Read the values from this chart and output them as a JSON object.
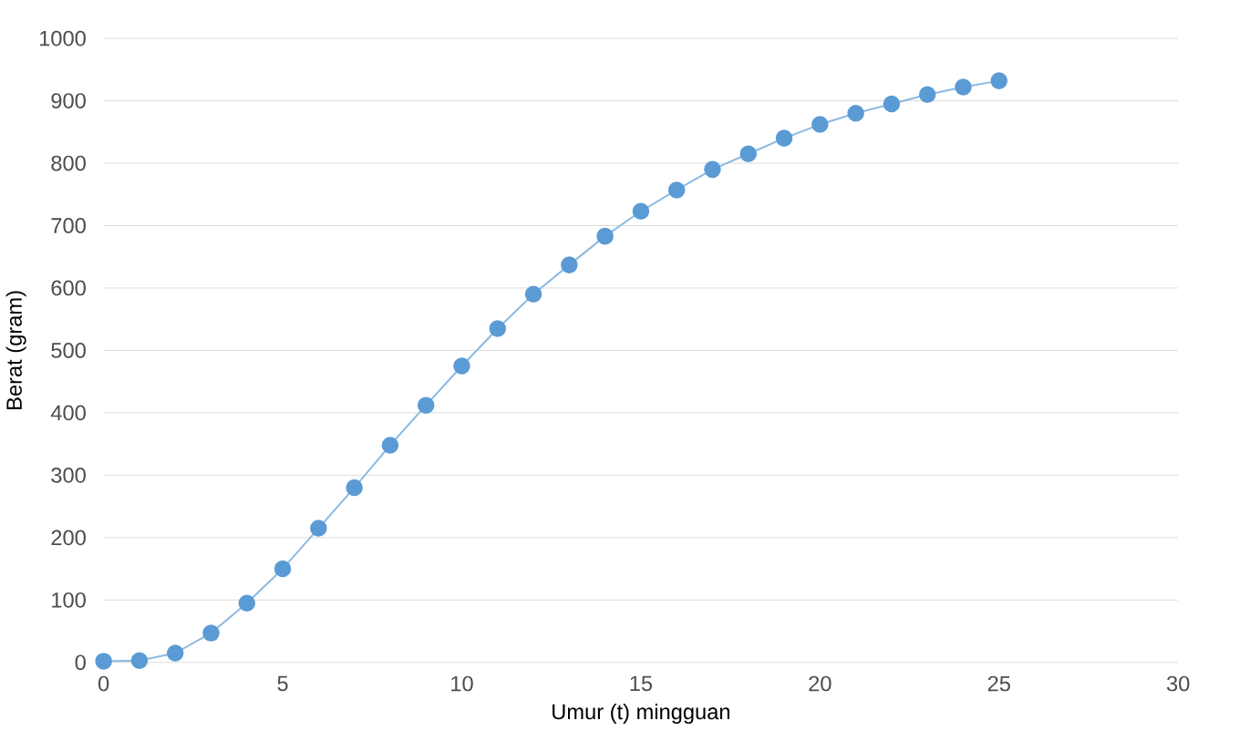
{
  "chart_data": {
    "type": "line",
    "xlabel": "Umur (t) mingguan",
    "ylabel": "Berat (gram)",
    "x": [
      0,
      1,
      2,
      3,
      4,
      5,
      6,
      7,
      8,
      9,
      10,
      11,
      12,
      13,
      14,
      15,
      16,
      17,
      18,
      19,
      20,
      21,
      22,
      23,
      24,
      25
    ],
    "series": [
      {
        "color": "#5b9bd5",
        "values": [
          2,
          3,
          15,
          47,
          95,
          150,
          215,
          280,
          348,
          412,
          475,
          535,
          590,
          637,
          683,
          723,
          757,
          790,
          815,
          840,
          862,
          880,
          895,
          910,
          922,
          932
        ]
      }
    ],
    "xlim": [
      0,
      30
    ],
    "xticks": [
      0,
      5,
      10,
      15,
      20,
      25,
      30
    ],
    "ylim": [
      0,
      1000
    ],
    "yticks": [
      0,
      100,
      200,
      300,
      400,
      500,
      600,
      700,
      800,
      900,
      1000
    ],
    "grid": "y",
    "marker": "circle",
    "line_style": "solid"
  }
}
